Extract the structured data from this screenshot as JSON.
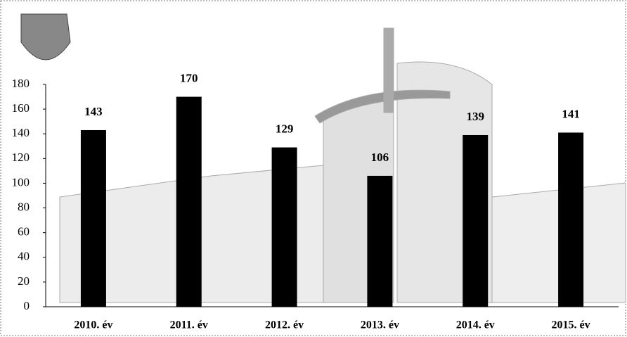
{
  "chart_data": {
    "type": "bar",
    "categories": [
      "2010. év",
      "2011. év",
      "2012. év",
      "2013. év",
      "2014. év",
      "2015. év"
    ],
    "values": [
      143,
      170,
      129,
      106,
      139,
      141
    ],
    "color": "#000000",
    "ylim": [
      0,
      180
    ],
    "yticks": [
      0,
      20,
      40,
      60,
      80,
      100,
      120,
      140,
      160,
      180
    ]
  }
}
